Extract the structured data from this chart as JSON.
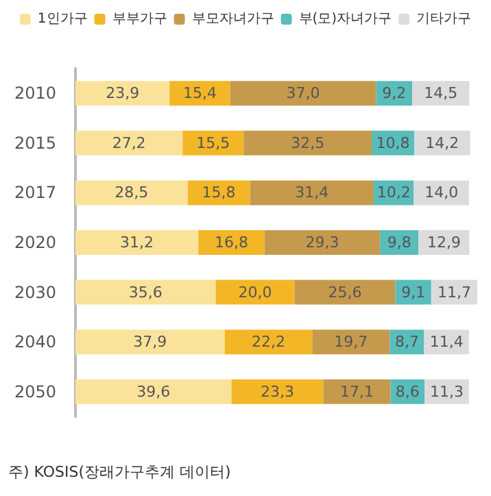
{
  "chart_data": {
    "type": "bar",
    "orientation": "horizontal",
    "stacked": true,
    "legend": "top",
    "categories": [
      "2010",
      "2015",
      "2017",
      "2020",
      "2030",
      "2040",
      "2050"
    ],
    "series": [
      {
        "name": "1인가구",
        "color": "#fae29a",
        "values": [
          23.9,
          27.2,
          28.5,
          31.2,
          35.6,
          37.9,
          39.6
        ],
        "value_labels": [
          "23,9",
          "27,2",
          "28,5",
          "31,2",
          "35,6",
          "37,9",
          "39,6"
        ]
      },
      {
        "name": "부부가구",
        "color": "#f3b627",
        "values": [
          15.4,
          15.5,
          15.8,
          16.8,
          20.0,
          22.2,
          23.3
        ],
        "value_labels": [
          "15,4",
          "15,5",
          "15,8",
          "16,8",
          "20,0",
          "22,2",
          "23,3"
        ]
      },
      {
        "name": "부모자녀가구",
        "color": "#c59a4c",
        "values": [
          37.0,
          32.5,
          31.4,
          29.3,
          25.6,
          19.7,
          17.1
        ],
        "value_labels": [
          "37,0",
          "32,5",
          "31,4",
          "29,3",
          "25,6",
          "19,7",
          "17,1"
        ]
      },
      {
        "name": "부(모)자녀가구",
        "color": "#58bdbb",
        "values": [
          9.2,
          10.8,
          10.2,
          9.8,
          9.1,
          8.7,
          8.6
        ],
        "value_labels": [
          "9,2",
          "10,8",
          "10,2",
          "9,8",
          "9,1",
          "8,7",
          "8,6"
        ]
      },
      {
        "name": "기타가구",
        "color": "#dcdcdc",
        "values": [
          14.5,
          14.2,
          14.0,
          12.9,
          11.7,
          11.4,
          11.3
        ],
        "value_labels": [
          "14,5",
          "14,2",
          "14,0",
          "12,9",
          "11,7",
          "11,4",
          "11,3"
        ]
      }
    ],
    "annotations": [
      "주) KOSIS(장래가구추계 데이터)"
    ]
  }
}
